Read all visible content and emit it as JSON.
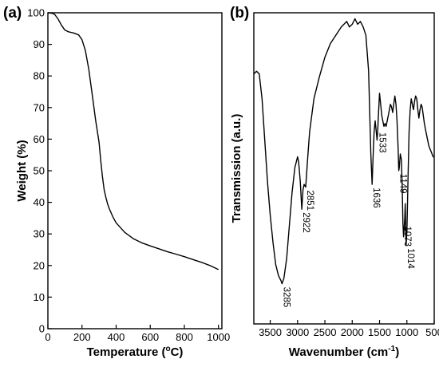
{
  "chart_data": [
    {
      "panel": "(a)",
      "type": "line",
      "xlabel": "Temperature (°C)",
      "xlabel_main": "Temperature (",
      "xlabel_sup": "o",
      "xlabel_tail": "C)",
      "ylabel": "Weight (%)",
      "xlim": [
        0,
        1020
      ],
      "ylim": [
        0,
        100
      ],
      "xticks": [
        0,
        200,
        400,
        600,
        800,
        1000
      ],
      "yticks": [
        0,
        10,
        20,
        30,
        40,
        50,
        60,
        70,
        80,
        90,
        100
      ],
      "grid": false,
      "series": [
        {
          "x": [
            0,
            20,
            40,
            60,
            80,
            100,
            120,
            150,
            180,
            200,
            220,
            240,
            260,
            280,
            300,
            310,
            320,
            330,
            340,
            350,
            360,
            380,
            400,
            450,
            500,
            550,
            600,
            650,
            700,
            750,
            800,
            850,
            900,
            950,
            1000
          ],
          "y": [
            100,
            99.9,
            99.5,
            98.0,
            96.0,
            94.5,
            94.0,
            93.6,
            93.0,
            91.5,
            88.0,
            82.0,
            74.0,
            66.0,
            59.0,
            53.0,
            48.0,
            44.0,
            41.5,
            39.5,
            38.0,
            35.5,
            33.5,
            30.5,
            28.5,
            27.2,
            26.2,
            25.3,
            24.4,
            23.6,
            22.8,
            21.9,
            21.0,
            20.0,
            18.7
          ]
        }
      ]
    },
    {
      "panel": "(b)",
      "type": "line",
      "xlabel": "Wavenumber (cm-1)",
      "xlabel_main": "Wavenumber (cm",
      "xlabel_sup": "-1",
      "xlabel_tail": ")",
      "ylabel": "Transmission (a.u.)",
      "xlim": [
        3800,
        500
      ],
      "xticks": [
        3500,
        3000,
        2500,
        2000,
        1500,
        1000,
        500
      ],
      "ylim": [
        0,
        1
      ],
      "y_ticks_shown": false,
      "grid": false,
      "annotations": [
        {
          "text": "3285",
          "x": 3285,
          "y": 0.03
        },
        {
          "text": "2922",
          "x": 2922,
          "y": 0.3
        },
        {
          "text": "2851",
          "x": 2851,
          "y": 0.38
        },
        {
          "text": "1636",
          "x": 1636,
          "y": 0.39
        },
        {
          "text": "1533",
          "x": 1533,
          "y": 0.59
        },
        {
          "text": "1149",
          "x": 1149,
          "y": 0.44
        },
        {
          "text": "1073",
          "x": 1073,
          "y": 0.25
        },
        {
          "text": "1014",
          "x": 1014,
          "y": 0.17
        }
      ],
      "series": [
        {
          "x": [
            3800,
            3750,
            3700,
            3650,
            3600,
            3550,
            3500,
            3450,
            3400,
            3350,
            3300,
            3285,
            3250,
            3200,
            3150,
            3100,
            3050,
            3000,
            2980,
            2950,
            2922,
            2900,
            2880,
            2851,
            2820,
            2780,
            2700,
            2600,
            2500,
            2400,
            2300,
            2200,
            2100,
            2050,
            2000,
            1950,
            1900,
            1850,
            1800,
            1750,
            1700,
            1680,
            1660,
            1636,
            1620,
            1600,
            1580,
            1560,
            1545,
            1533,
            1520,
            1500,
            1480,
            1460,
            1440,
            1420,
            1400,
            1380,
            1360,
            1340,
            1320,
            1300,
            1280,
            1260,
            1240,
            1220,
            1200,
            1180,
            1160,
            1149,
            1140,
            1120,
            1100,
            1085,
            1073,
            1060,
            1040,
            1030,
            1014,
            1000,
            980,
            960,
            940,
            920,
            900,
            880,
            860,
            840,
            820,
            800,
            780,
            760,
            740,
            720,
            700,
            680,
            660,
            640,
            620,
            600,
            580,
            560,
            540,
            520,
            510
          ],
          "y": [
            0.79,
            0.8,
            0.79,
            0.7,
            0.55,
            0.4,
            0.28,
            0.18,
            0.1,
            0.06,
            0.04,
            0.03,
            0.05,
            0.12,
            0.24,
            0.36,
            0.45,
            0.49,
            0.47,
            0.4,
            0.3,
            0.37,
            0.39,
            0.38,
            0.47,
            0.58,
            0.7,
            0.78,
            0.85,
            0.9,
            0.93,
            0.96,
            0.98,
            0.96,
            0.97,
            0.99,
            0.97,
            0.98,
            0.96,
            0.93,
            0.8,
            0.65,
            0.5,
            0.39,
            0.48,
            0.58,
            0.62,
            0.58,
            0.55,
            0.59,
            0.64,
            0.72,
            0.68,
            0.64,
            0.62,
            0.6,
            0.61,
            0.6,
            0.62,
            0.64,
            0.66,
            0.68,
            0.67,
            0.65,
            0.68,
            0.71,
            0.68,
            0.62,
            0.52,
            0.44,
            0.45,
            0.5,
            0.48,
            0.38,
            0.25,
            0.2,
            0.26,
            0.32,
            0.17,
            0.22,
            0.4,
            0.58,
            0.66,
            0.7,
            0.68,
            0.66,
            0.69,
            0.71,
            0.7,
            0.66,
            0.63,
            0.66,
            0.68,
            0.67,
            0.64,
            0.61,
            0.59,
            0.57,
            0.55,
            0.53,
            0.52,
            0.51,
            0.5,
            0.49,
            0.49
          ]
        }
      ]
    }
  ]
}
